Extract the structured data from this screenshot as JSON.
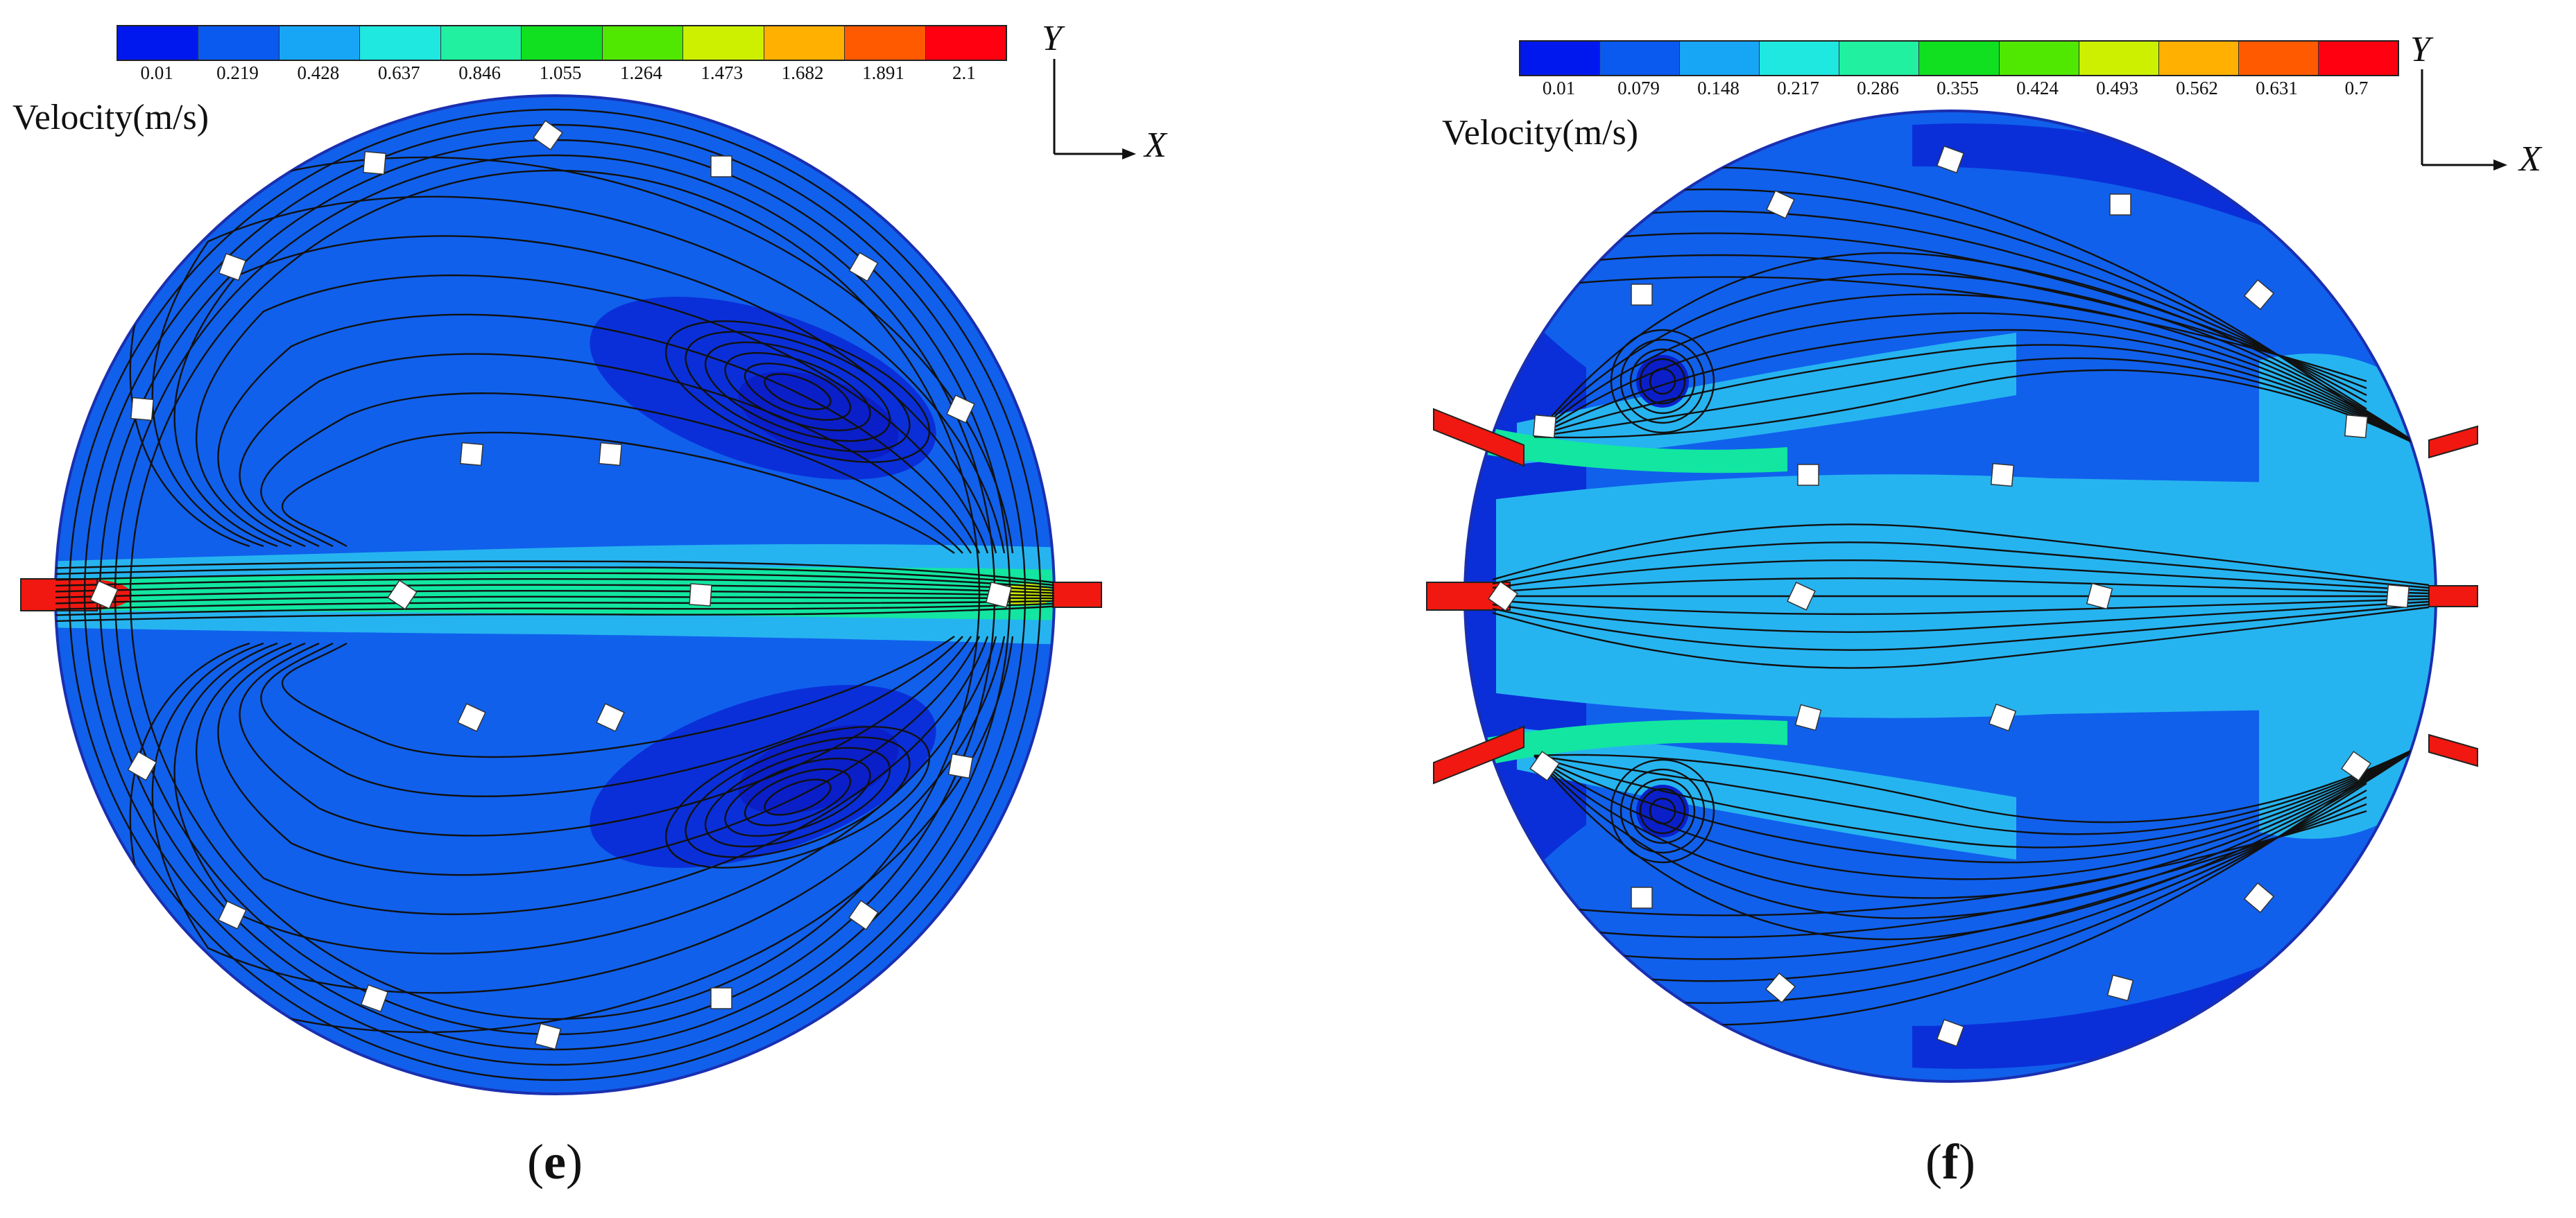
{
  "panels": [
    {
      "id": "e",
      "label_open": "(",
      "label_letter": "e",
      "label_close": ")",
      "legend_title": "Velocity(m/s)",
      "legend_ticks": [
        "0.01",
        "0.219",
        "0.428",
        "0.637",
        "0.846",
        "1.055",
        "1.264",
        "1.473",
        "1.682",
        "1.891",
        "2.1"
      ],
      "legend_colors": [
        "#0018ee",
        "#0a5af0",
        "#17a6f5",
        "#1ee8e0",
        "#20f0a0",
        "#10e020",
        "#50e800",
        "#ccf000",
        "#ffb000",
        "#ff5a00",
        "#ff0010"
      ],
      "axis_y": "Y",
      "axis_x": "X"
    },
    {
      "id": "f",
      "label_open": "(",
      "label_letter": "f",
      "label_close": ")",
      "legend_title": "Velocity(m/s)",
      "legend_ticks": [
        "0.01",
        "0.079",
        "0.148",
        "0.217",
        "0.286",
        "0.355",
        "0.424",
        "0.493",
        "0.562",
        "0.631",
        "0.7"
      ],
      "legend_colors": [
        "#0018ee",
        "#0a5af0",
        "#17a6f5",
        "#1ee8e0",
        "#20f0a0",
        "#10e020",
        "#50e800",
        "#ccf000",
        "#ffb000",
        "#ff5a00",
        "#ff0010"
      ],
      "axis_y": "Y",
      "axis_x": "X"
    }
  ],
  "field_colors": {
    "background": "#1060ec",
    "low": "#0a2fd8",
    "medium": "#26b4f0",
    "high": "#12e6a0",
    "jet": "#f01810",
    "streamline": "#111111",
    "obstacle": "#ffffff"
  }
}
